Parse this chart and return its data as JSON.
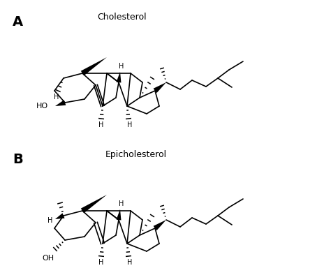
{
  "title_A": "Cholesterol",
  "title_B": "Epicholesterol",
  "label_A": "A",
  "label_B": "B",
  "bg_color": "#ffffff",
  "line_color": "#000000",
  "lw": 1.2,
  "fig_width": 4.74,
  "fig_height": 3.94,
  "dpi": 100
}
